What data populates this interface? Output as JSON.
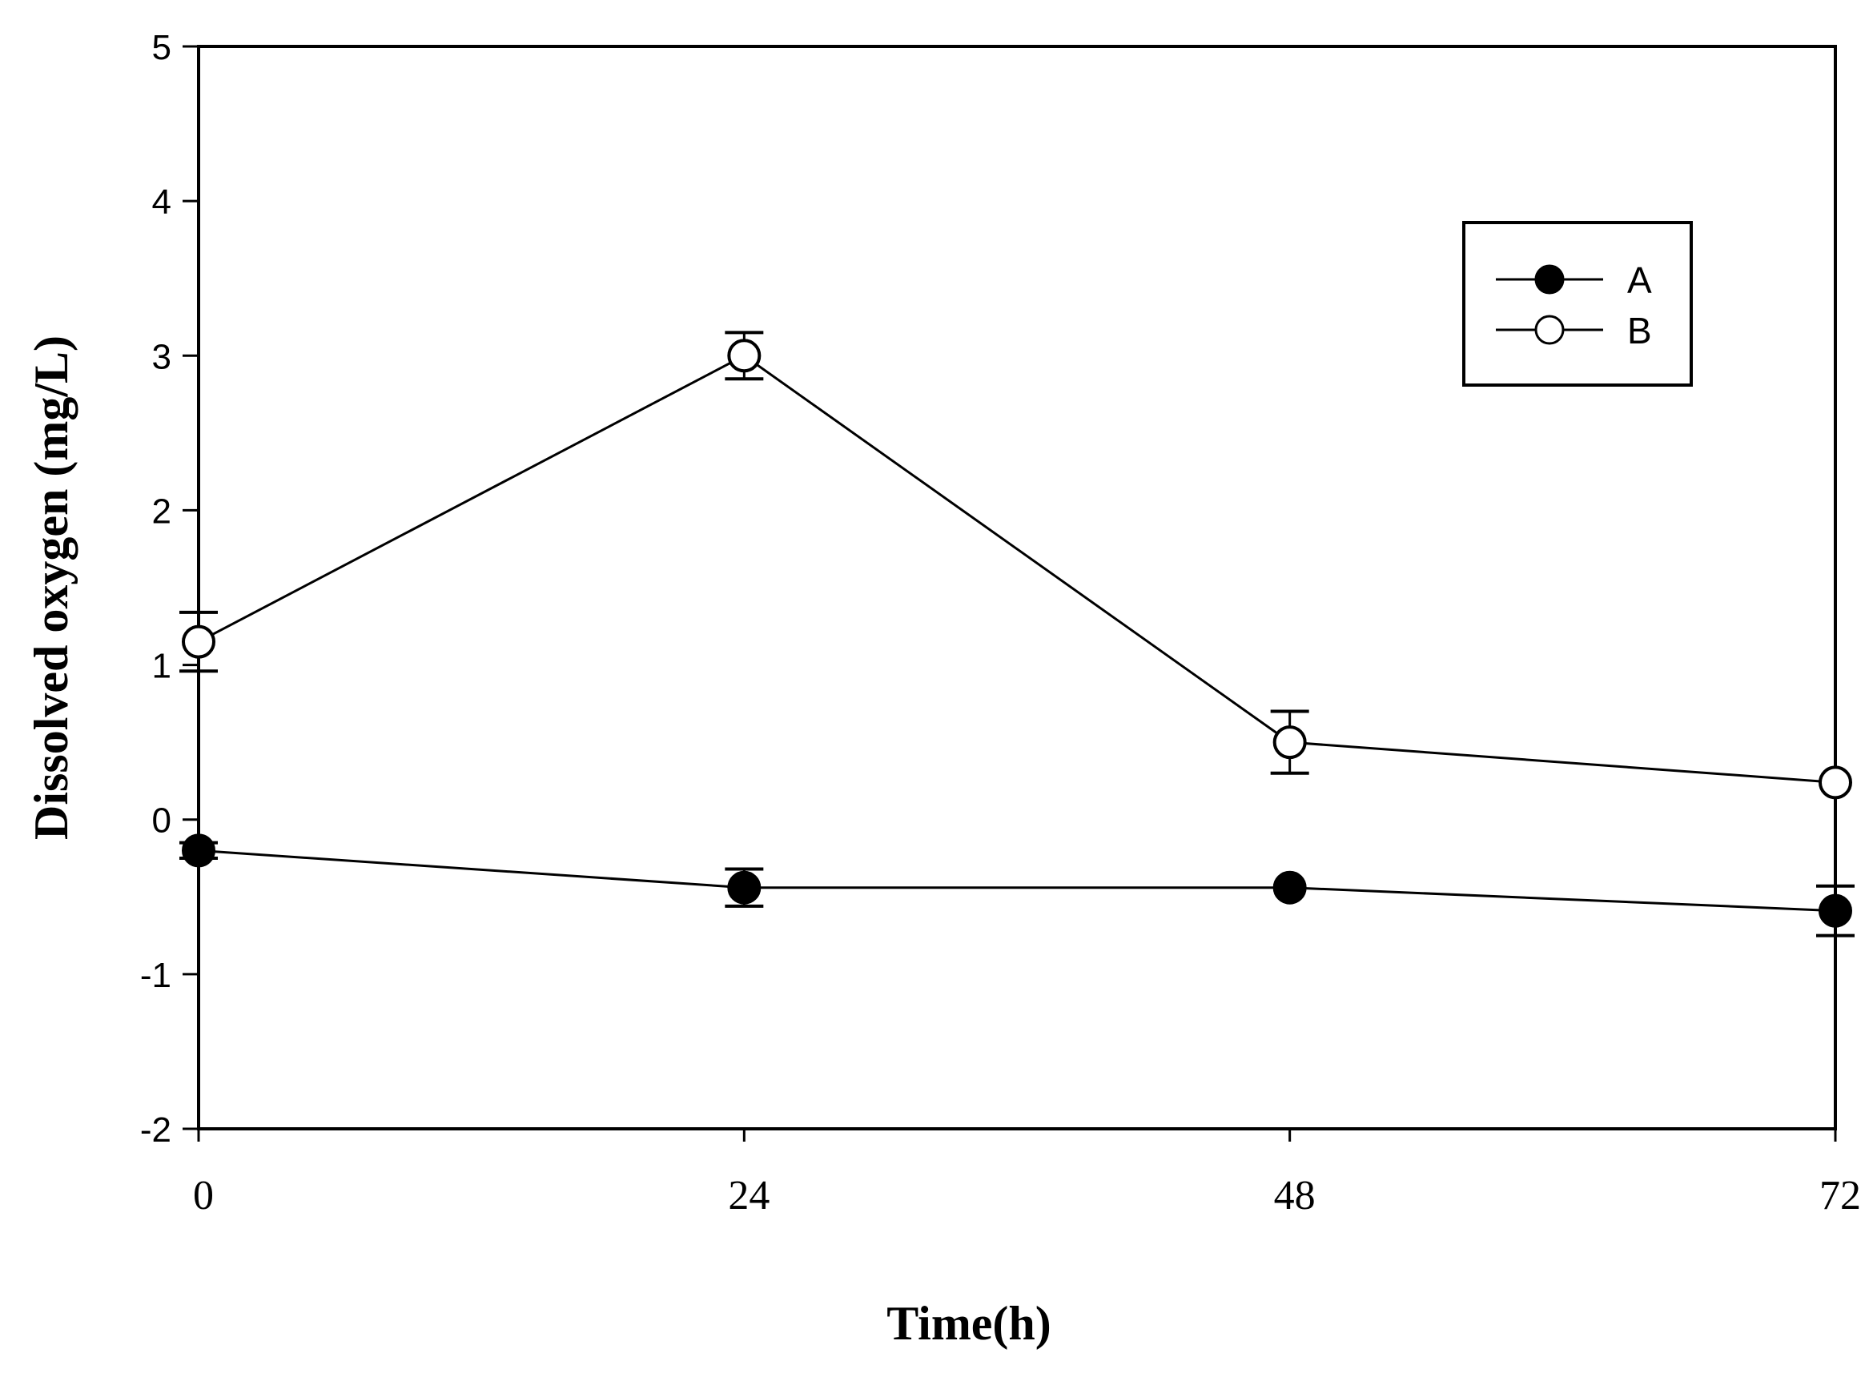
{
  "chart_data": {
    "type": "line",
    "title": "",
    "xlabel": "Time(h)",
    "ylabel": "Dissolved oxygen (mg/L)",
    "x": [
      0,
      24,
      48,
      72
    ],
    "x_ticks": [
      "0",
      "24",
      "48",
      "72"
    ],
    "xlim": [
      0,
      72
    ],
    "y_ticks": [
      "5",
      "4",
      "3",
      "2",
      "1",
      "0",
      "-1",
      "-2"
    ],
    "ylim": [
      -2,
      5
    ],
    "grid": false,
    "legend_position": "top-right",
    "series": [
      {
        "name": "A",
        "marker": "filled-circle",
        "color": "#000000",
        "values": [
          -0.2,
          -0.44,
          -0.44,
          -0.59
        ],
        "errors": [
          0.05,
          0.12,
          0.0,
          0.16
        ]
      },
      {
        "name": "B",
        "marker": "open-circle",
        "color": "#000000",
        "values": [
          1.15,
          3.0,
          0.5,
          0.24
        ],
        "errors": [
          0.19,
          0.15,
          0.2,
          0.0
        ]
      }
    ]
  }
}
